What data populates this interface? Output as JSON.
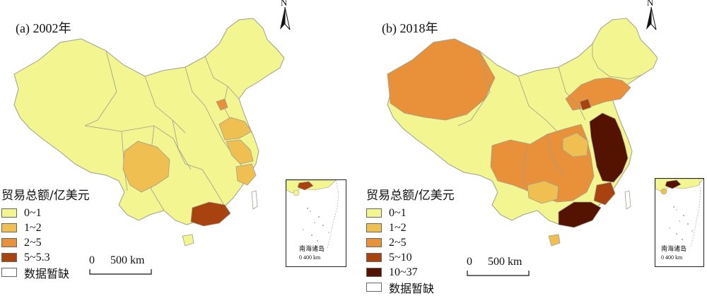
{
  "colors": {
    "c0": "#f2f590",
    "c1": "#f0bf52",
    "c2": "#e9913a",
    "c3": "#a8420f",
    "c4": "#531300",
    "nodata": "#ffffff",
    "border": "#9e9e8e"
  },
  "legend_title": "贸易总额/亿美元",
  "nodata_label": "数据暂缺",
  "north_label": "N",
  "inset_label": "南海诸岛",
  "inset_scale": "0   400 km",
  "scale_zero": "0",
  "scale_label": "500 km",
  "panel_a": {
    "title": "(a) 2002年",
    "legend": [
      {
        "label": "0~1",
        "color": "#f2f590"
      },
      {
        "label": "1~2",
        "color": "#f0bf52"
      },
      {
        "label": "2~5",
        "color": "#e9913a"
      },
      {
        "label": "5~5.3",
        "color": "#a8420f"
      }
    ]
  },
  "panel_b": {
    "title": "(b) 2018年",
    "legend": [
      {
        "label": "0~1",
        "color": "#f2f590"
      },
      {
        "label": "1~2",
        "color": "#f0bf52"
      },
      {
        "label": "2~5",
        "color": "#e9913a"
      },
      {
        "label": "5~10",
        "color": "#a8420f"
      },
      {
        "label": "10~37",
        "color": "#531300"
      }
    ]
  }
}
